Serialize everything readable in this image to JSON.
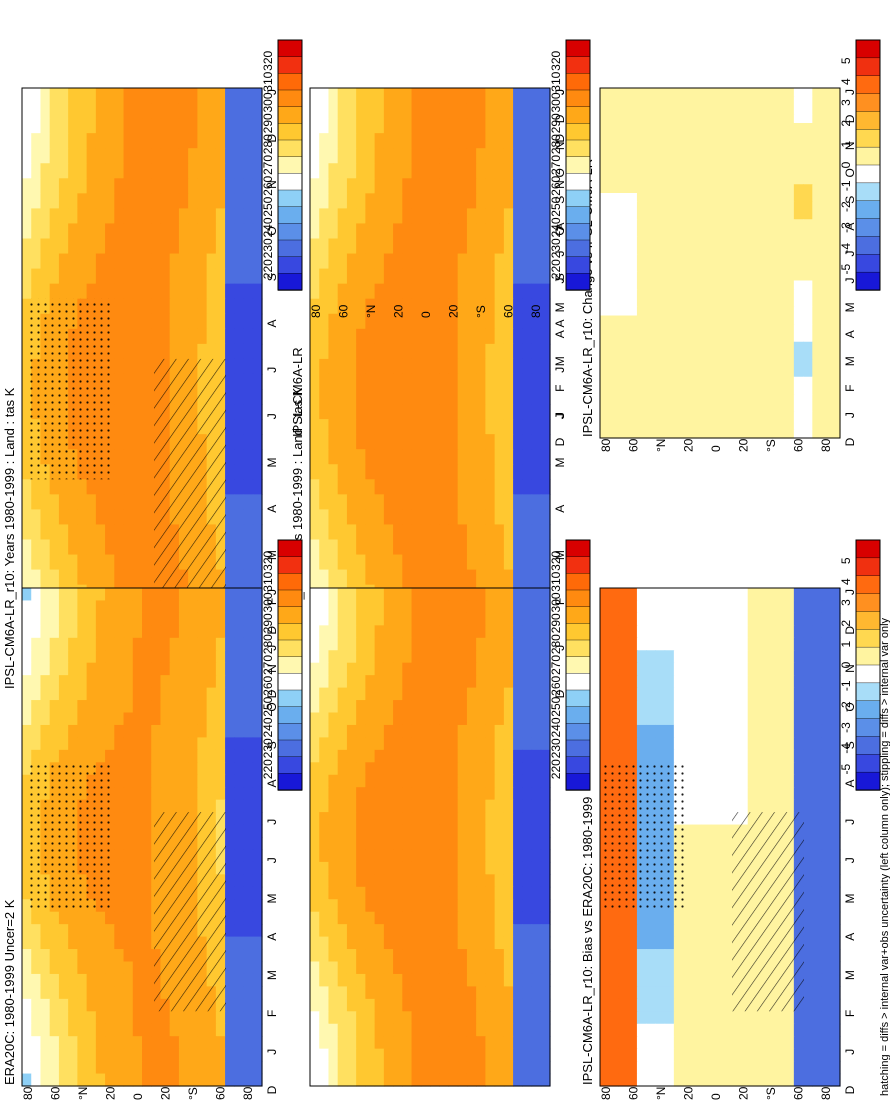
{
  "figure_caption": "hatching = diffs > internal var+obs uncertainty (left column only); stippling = diffs > internal var only",
  "months": [
    "D",
    "J",
    "F",
    "M",
    "A",
    "M",
    "J",
    "J",
    "A",
    "S",
    "O",
    "N",
    "D",
    "J"
  ],
  "lat_ticks": [
    "80",
    "60",
    "°N",
    "20",
    "0",
    "20",
    "°S",
    "60",
    "80"
  ],
  "colors": {
    "abs_scale": [
      "#1818d8",
      "#3848e0",
      "#4c6ee0",
      "#5b8fe8",
      "#6aaeee",
      "#8ed0f6",
      "#ffffff",
      "#fff8b0",
      "#ffe060",
      "#ffc830",
      "#ffa818",
      "#ff8a10",
      "#ff6a08",
      "#f23010",
      "#d80000"
    ],
    "diff_scale": [
      "#1818d8",
      "#3848e0",
      "#4c6ee0",
      "#5b8fe8",
      "#6aaeee",
      "#a8ddf8",
      "#ffffff",
      "#fff4a0",
      "#ffd850",
      "#ffb830",
      "#ff9020",
      "#ff6a10",
      "#f03010",
      "#d80000"
    ]
  },
  "colorbars": {
    "absolute": {
      "labels": [
        "320",
        "310",
        "300",
        "290",
        "280",
        "270",
        "260",
        "250",
        "240",
        "230",
        "220"
      ]
    },
    "difference": {
      "labels": [
        "5",
        "4",
        "3",
        "2",
        "1",
        "0",
        "-1",
        "-2",
        "-3",
        "-4",
        "-5"
      ]
    }
  },
  "chart_data": [
    {
      "type": "heatmap",
      "title": "IPSL-CM6A-LR_r10: Years 1980-1999 : Land : tas K",
      "variable": "tas",
      "units": "K",
      "x_axis": "month (Dec–Jan cycle)",
      "y_axis": "latitude",
      "clim": [
        215,
        325
      ],
      "approx_values": {
        "tropics": 300,
        "mid_lat_north_summer": 290,
        "mid_lat_north_winter": 260,
        "antarctic_winter": 220,
        "antarctic_summer": 250
      },
      "hatching": true,
      "stippling": true
    },
    {
      "type": "heatmap",
      "title": "IPSL-CM6A-LR_r10: Years 1980-1999 : Land : tas K",
      "variable": "tas",
      "units": "K",
      "clim": [
        215,
        325
      ],
      "approx_values": {
        "tropics": 300,
        "mid_lat_north_summer": 290,
        "mid_lat_north_winter": 260,
        "antarctic_winter": 220,
        "antarctic_summer": 255
      },
      "hatching": false,
      "stippling": false
    },
    {
      "type": "heatmap",
      "title": "ERA20C: 1980-1999 Uncer=2 K",
      "variable": "tas",
      "units": "K",
      "clim": [
        215,
        325
      ],
      "approx_values": {
        "tropics": 300,
        "mid_lat_north_summer": 290,
        "mid_lat_north_winter": 258,
        "antarctic_winter": 225,
        "antarctic_summer": 250
      },
      "hatching": true,
      "stippling": true
    },
    {
      "type": "heatmap",
      "title": "IPSL-CM6A-LR",
      "variable": "tas",
      "units": "K",
      "clim": [
        215,
        325
      ],
      "approx_values": {
        "tropics": 300,
        "mid_lat_north_summer": 290,
        "mid_lat_north_winter": 260,
        "antarctic_winter": 220,
        "antarctic_summer": 255
      },
      "hatching": false,
      "stippling": false
    },
    {
      "type": "heatmap",
      "title": "IPSL-CM6A-LR_r10: Bias vs ERA20C: 1980-1999",
      "units": "K",
      "clim": [
        -5.5,
        5.5
      ],
      "approx_values": {
        "arctic": 4.5,
        "north_mid_lat_winter": -2,
        "tropics": 0.5,
        "antarctic": -4
      },
      "hatching": true,
      "stippling": true
    },
    {
      "type": "heatmap",
      "title": "IPSL-CM6A-LR_r10: Change vs IPSL-CM6A-LR",
      "units": "K",
      "clim": [
        -5.5,
        5.5
      ],
      "approx_values": {
        "most_regions": 0,
        "arctic_patches": 0.8,
        "antarctic_patches": -1
      },
      "hatching": false,
      "stippling": false
    }
  ]
}
